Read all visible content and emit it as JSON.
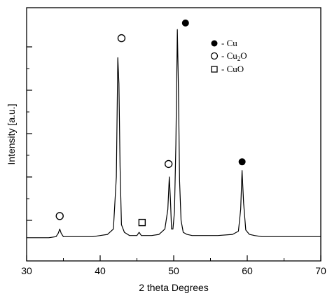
{
  "chart_data": {
    "type": "line",
    "xlabel": "2 theta Degrees",
    "ylabel": "Intensity [a.u.]",
    "xlim": [
      30,
      70
    ],
    "ylim": [
      0,
      1
    ],
    "xticks": [
      30,
      40,
      50,
      60,
      70
    ],
    "y_tick_labels_shown": false,
    "grid": false,
    "line_color": "#000000",
    "series": [
      {
        "x": [
          30,
          31,
          32,
          33,
          34,
          34.3,
          34.5,
          34.7,
          35,
          36,
          37,
          38,
          39,
          40,
          41,
          41.8,
          42.2,
          42.4,
          42.55,
          42.7,
          42.9,
          43.3,
          44,
          45,
          45.3,
          45.6,
          46,
          47,
          48,
          48.8,
          49.2,
          49.4,
          49.55,
          49.7,
          49.9,
          50.1,
          50.3,
          50.5,
          50.65,
          50.8,
          51.0,
          51.3,
          51.8,
          52.5,
          54,
          56,
          58,
          58.8,
          59.1,
          59.3,
          59.5,
          59.8,
          60.3,
          61,
          62,
          64,
          66,
          68,
          70
        ],
        "y": [
          0.02,
          0.02,
          0.02,
          0.02,
          0.025,
          0.04,
          0.06,
          0.04,
          0.025,
          0.025,
          0.025,
          0.025,
          0.025,
          0.03,
          0.035,
          0.06,
          0.3,
          0.85,
          0.73,
          0.35,
          0.08,
          0.045,
          0.03,
          0.03,
          0.045,
          0.03,
          0.03,
          0.03,
          0.035,
          0.06,
          0.15,
          0.3,
          0.2,
          0.06,
          0.06,
          0.14,
          0.45,
          0.98,
          0.7,
          0.28,
          0.1,
          0.045,
          0.035,
          0.03,
          0.03,
          0.03,
          0.035,
          0.05,
          0.15,
          0.33,
          0.18,
          0.055,
          0.035,
          0.03,
          0.025,
          0.025,
          0.025,
          0.025,
          0.025
        ]
      }
    ],
    "peak_markers": [
      {
        "x": 34.5,
        "y": 0.12,
        "marker": "open-circle"
      },
      {
        "x": 42.9,
        "y": 0.94,
        "marker": "open-circle"
      },
      {
        "x": 45.7,
        "y": 0.09,
        "marker": "open-square"
      },
      {
        "x": 49.3,
        "y": 0.36,
        "marker": "open-circle"
      },
      {
        "x": 51.6,
        "y": 1.01,
        "marker": "filled-circle"
      },
      {
        "x": 59.3,
        "y": 0.37,
        "marker": "filled-circle"
      }
    ],
    "legend": {
      "placement": "top-right",
      "entries": [
        {
          "marker": "filled-circle",
          "label": "- Cu"
        },
        {
          "marker": "open-circle",
          "label": "- Cu2O",
          "label_main": "- Cu",
          "label_sub": "2",
          "label_tail": "O"
        },
        {
          "marker": "open-square",
          "label": "- CuO"
        }
      ]
    }
  }
}
